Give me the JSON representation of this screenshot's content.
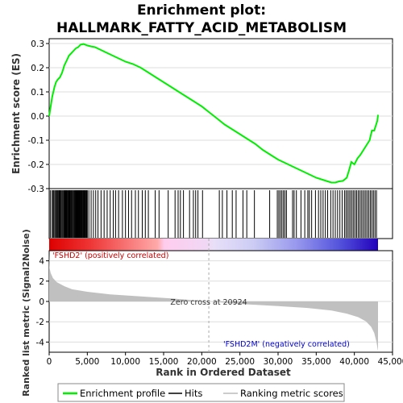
{
  "chart_data": {
    "type": "line",
    "title_line1": "Enrichment plot:",
    "title_line2": "HALLMARK_FATTY_ACID_METABOLISM",
    "es_panel": {
      "ylabel": "Enrichment score (ES)",
      "ylim": [
        -0.3,
        0.32
      ],
      "yticks": [
        "0.3",
        "0.2",
        "0.1",
        "0.0",
        "-0.1",
        "-0.2",
        "-0.3"
      ],
      "ytick_values": [
        0.3,
        0.2,
        0.1,
        0.0,
        -0.1,
        -0.2,
        -0.3
      ],
      "series": [
        {
          "name": "Enrichment profile",
          "color": "#00ee00",
          "x": [
            0,
            200,
            400,
            700,
            900,
            1100,
            1400,
            1700,
            2000,
            2300,
            2600,
            2900,
            3200,
            3500,
            3800,
            4100,
            4500,
            5000,
            5500,
            6000,
            7000,
            8000,
            9000,
            10000,
            11000,
            12000,
            13000,
            14000,
            15000,
            16000,
            17000,
            18000,
            19000,
            20000,
            21000,
            22000,
            23000,
            24000,
            25000,
            26000,
            27000,
            28000,
            29000,
            30000,
            31000,
            32000,
            33000,
            34000,
            35000,
            36000,
            36500,
            37000,
            37500,
            38000,
            38500,
            39000,
            39300,
            39600,
            40000,
            40400,
            40800,
            41200,
            41600,
            42000,
            42300,
            42600,
            42800,
            43000,
            43100
          ],
          "y": [
            0.0,
            0.04,
            0.08,
            0.12,
            0.14,
            0.15,
            0.16,
            0.18,
            0.21,
            0.23,
            0.25,
            0.26,
            0.27,
            0.28,
            0.285,
            0.295,
            0.298,
            0.292,
            0.288,
            0.285,
            0.27,
            0.255,
            0.24,
            0.225,
            0.215,
            0.2,
            0.18,
            0.16,
            0.14,
            0.12,
            0.1,
            0.08,
            0.06,
            0.04,
            0.015,
            -0.01,
            -0.035,
            -0.055,
            -0.075,
            -0.095,
            -0.115,
            -0.14,
            -0.16,
            -0.18,
            -0.195,
            -0.21,
            -0.225,
            -0.24,
            -0.255,
            -0.265,
            -0.27,
            -0.275,
            -0.275,
            -0.27,
            -0.268,
            -0.255,
            -0.225,
            -0.19,
            -0.2,
            -0.175,
            -0.16,
            -0.14,
            -0.12,
            -0.1,
            -0.06,
            -0.06,
            -0.04,
            -0.02,
            0.005
          ]
        }
      ]
    },
    "hits_panel": {
      "legend": "Hits",
      "hit_positions": [
        150,
        380,
        520,
        620,
        760,
        880,
        990,
        1100,
        1230,
        1320,
        1410,
        1500,
        1600,
        1720,
        1830,
        1960,
        2020,
        2090,
        2160,
        2230,
        2300,
        2390,
        2460,
        2550,
        2640,
        2730,
        2820,
        2920,
        3010,
        3140,
        3230,
        3310,
        3400,
        3490,
        3580,
        3650,
        3720,
        3800,
        3880,
        3960,
        4050,
        4130,
        4220,
        4310,
        4400,
        4480,
        4560,
        4640,
        4730,
        4820,
        4910,
        5000,
        5200,
        5500,
        5800,
        6100,
        6400,
        6800,
        7200,
        7600,
        8000,
        8400,
        8700,
        9100,
        9600,
        10000,
        10400,
        10800,
        11300,
        11700,
        12200,
        12600,
        13000,
        13900,
        14400,
        15600,
        16500,
        16900,
        17200,
        17600,
        18400,
        18900,
        19200,
        19500,
        20100,
        22300,
        22700,
        23300,
        24000,
        24500,
        25400,
        25900,
        26900,
        28900,
        29900,
        30100,
        30300,
        30500,
        30700,
        30900,
        31100,
        31900,
        32100,
        32400,
        33000,
        33500,
        33900,
        34100,
        34400,
        34900,
        35300,
        35600,
        35900,
        36200,
        36500,
        36900,
        37200,
        37500,
        37800,
        38100,
        38400,
        38700,
        38900,
        39100,
        39300,
        39500,
        39700,
        39900,
        40100,
        40300,
        40500,
        40700,
        40900,
        41100,
        41300,
        41500,
        41700,
        41900,
        42100,
        42300,
        42500,
        42700,
        42900
      ]
    },
    "metric_panel": {
      "ylabel": "Ranked list metric (Signal2Noise)",
      "legend": "Ranking metric scores",
      "ylim": [
        -5,
        5
      ],
      "yticks": [
        "4",
        "2",
        "0",
        "-2",
        "-4"
      ],
      "ytick_values": [
        4,
        2,
        0,
        -2,
        -4
      ],
      "x": [
        0,
        50,
        200,
        500,
        1000,
        2000,
        3000,
        5000,
        8000,
        12000,
        16000,
        20924,
        25000,
        30000,
        34000,
        37000,
        39000,
        40500,
        41500,
        42200,
        42600,
        42900,
        43100
      ],
      "values": [
        4.7,
        3.3,
        2.8,
        2.3,
        1.9,
        1.5,
        1.2,
        0.95,
        0.7,
        0.5,
        0.3,
        0.0,
        -0.25,
        -0.45,
        -0.65,
        -0.9,
        -1.2,
        -1.55,
        -1.95,
        -2.5,
        -3.1,
        -4.0,
        -4.9
      ],
      "zero_cross_label": "Zero cross at 20924",
      "zero_cross": 20924,
      "pos_label": "'FSHD2' (positively correlated)",
      "neg_label": "'FSHD2M' (negatively correlated)"
    },
    "xaxis": {
      "xlabel": "Rank in Ordered Dataset",
      "xlim": [
        0,
        45000
      ],
      "xticks": [
        "0",
        "5,000",
        "10,000",
        "15,000",
        "20,000",
        "25,000",
        "30,000",
        "35,000",
        "40,000",
        "45,000"
      ],
      "xtick_values": [
        0,
        5000,
        10000,
        15000,
        20000,
        25000,
        30000,
        35000,
        40000,
        45000
      ],
      "total_rank": 43100
    },
    "legend": {
      "items": [
        {
          "label": "Enrichment profile",
          "color": "#00ee00"
        },
        {
          "label": "Hits",
          "color": "#000000"
        },
        {
          "label": "Ranking metric scores",
          "color": "#bbbbbb"
        }
      ]
    },
    "colors": {
      "pos_label": "#cc0000",
      "neg_label": "#0000cc",
      "metric_fill": "#c0c0c0",
      "zero_line": "#aaaaaa",
      "grid": "#dddddd"
    }
  }
}
